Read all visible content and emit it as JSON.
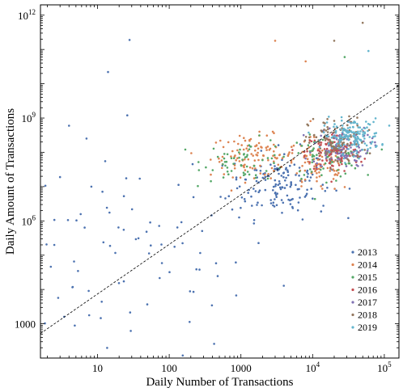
{
  "chart_data": {
    "type": "scatter",
    "xlabel": "Daily Number of Transactions",
    "ylabel": "Daily Amount of Transactions",
    "xscale": "log",
    "yscale": "log",
    "xlim": [
      1.6,
      160000
    ],
    "ylim": [
      100,
      2000000000000
    ],
    "x_ticks": [
      {
        "value": 10,
        "base": "10",
        "exp": ""
      },
      {
        "value": 100,
        "base": "100",
        "exp": ""
      },
      {
        "value": 1000,
        "base": "1000",
        "exp": ""
      },
      {
        "value": 10000,
        "base": "10",
        "exp": "4"
      },
      {
        "value": 100000,
        "base": "10",
        "exp": "5"
      }
    ],
    "y_ticks": [
      {
        "value": 1000,
        "base": "1000",
        "exp": ""
      },
      {
        "value": 1000000,
        "base": "10",
        "exp": "6"
      },
      {
        "value": 1000000000,
        "base": "10",
        "exp": "9"
      },
      {
        "value": 1000000000000,
        "base": "10",
        "exp": "12"
      }
    ],
    "legend_position": "bottom-right",
    "grid": false,
    "reference_line": {
      "style": "dashed",
      "color": "#000000",
      "x": [
        1.6,
        160000
      ],
      "y": [
        520,
        9000000000
      ]
    },
    "series": [
      {
        "name": "2013",
        "color": "#4c72b0",
        "clusters": [
          {
            "cx": 30,
            "cy": 80000,
            "sx": 1.0,
            "sy": 1.4,
            "n": 90
          },
          {
            "cx": 3500,
            "cy": 12000000,
            "sx": 0.35,
            "sy": 0.5,
            "n": 150
          }
        ],
        "outliers": [
          [
            28,
            190000000000
          ],
          [
            14,
            22000000000
          ],
          [
            26,
            1200000000
          ],
          [
            4,
            600000000
          ],
          [
            3,
            19000000
          ]
        ]
      },
      {
        "name": "2014",
        "color": "#dd8452",
        "clusters": [
          {
            "cx": 1500,
            "cy": 80000000,
            "sx": 0.3,
            "sy": 0.3,
            "n": 110
          },
          {
            "cx": 12000,
            "cy": 40000000,
            "sx": 0.25,
            "sy": 0.4,
            "n": 90
          }
        ],
        "outliers": [
          [
            3000,
            180000000000
          ],
          [
            8000,
            45000000000
          ]
        ]
      },
      {
        "name": "2015",
        "color": "#55a868",
        "clusters": [
          {
            "cx": 1200,
            "cy": 60000000,
            "sx": 0.3,
            "sy": 0.3,
            "n": 60
          },
          {
            "cx": 15000,
            "cy": 70000000,
            "sx": 0.25,
            "sy": 0.3,
            "n": 70
          }
        ],
        "outliers": [
          [
            28000,
            60000000000
          ]
        ]
      },
      {
        "name": "2016",
        "color": "#c44e52",
        "clusters": [
          {
            "cx": 20000,
            "cy": 100000000,
            "sx": 0.2,
            "sy": 0.3,
            "n": 120
          }
        ],
        "outliers": []
      },
      {
        "name": "2017",
        "color": "#8172b3",
        "clusters": [
          {
            "cx": 25000,
            "cy": 150000000,
            "sx": 0.2,
            "sy": 0.3,
            "n": 100
          }
        ],
        "outliers": []
      },
      {
        "name": "2018",
        "color": "#937860",
        "clusters": [
          {
            "cx": 22000,
            "cy": 200000000,
            "sx": 0.2,
            "sy": 0.35,
            "n": 110
          }
        ],
        "outliers": [
          [
            20000,
            180000000000
          ],
          [
            50000,
            600000000000
          ]
        ]
      },
      {
        "name": "2019",
        "color": "#64b5cd",
        "clusters": [
          {
            "cx": 35000,
            "cy": 300000000,
            "sx": 0.2,
            "sy": 0.25,
            "n": 150
          }
        ],
        "outliers": [
          [
            60000,
            90000000000
          ]
        ]
      }
    ]
  }
}
